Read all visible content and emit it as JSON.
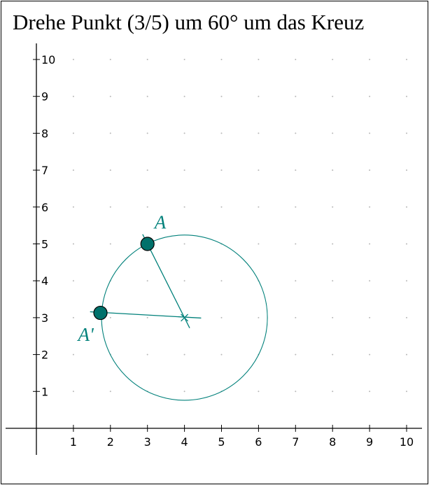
{
  "title": "Drehe Punkt (3/5) um 60° um das Kreuz",
  "colors": {
    "construction": "#00807a",
    "point_fill": "#00716b",
    "axis": "#000000",
    "grid_dot": "#b8b8b8"
  },
  "chart_data": {
    "type": "scatter",
    "title": "Drehe Punkt (3/5) um 60° um das Kreuz",
    "xlabel": "",
    "ylabel": "",
    "xlim": [
      0,
      10
    ],
    "ylim": [
      0,
      10
    ],
    "x_ticks": [
      "1",
      "2",
      "3",
      "4",
      "5",
      "6",
      "7",
      "8",
      "9",
      "10"
    ],
    "y_ticks": [
      "1",
      "2",
      "3",
      "4",
      "5",
      "6",
      "7",
      "8",
      "9",
      "10"
    ],
    "grid": "dots",
    "rotation_center": {
      "x": 4,
      "y": 3,
      "marker": "cross"
    },
    "rotation_angle_deg": 60,
    "circle": {
      "cx": 4,
      "cy": 3,
      "r": 2.24
    },
    "points": [
      {
        "name": "A",
        "x": 3,
        "y": 5
      },
      {
        "name": "A'",
        "x": 1.73,
        "y": 3.13
      }
    ],
    "segments": [
      {
        "from": [
          2.87,
          5.26
        ],
        "to": [
          4.14,
          2.72
        ]
      },
      {
        "from": [
          1.45,
          3.16
        ],
        "to": [
          4.45,
          2.99
        ]
      }
    ]
  }
}
